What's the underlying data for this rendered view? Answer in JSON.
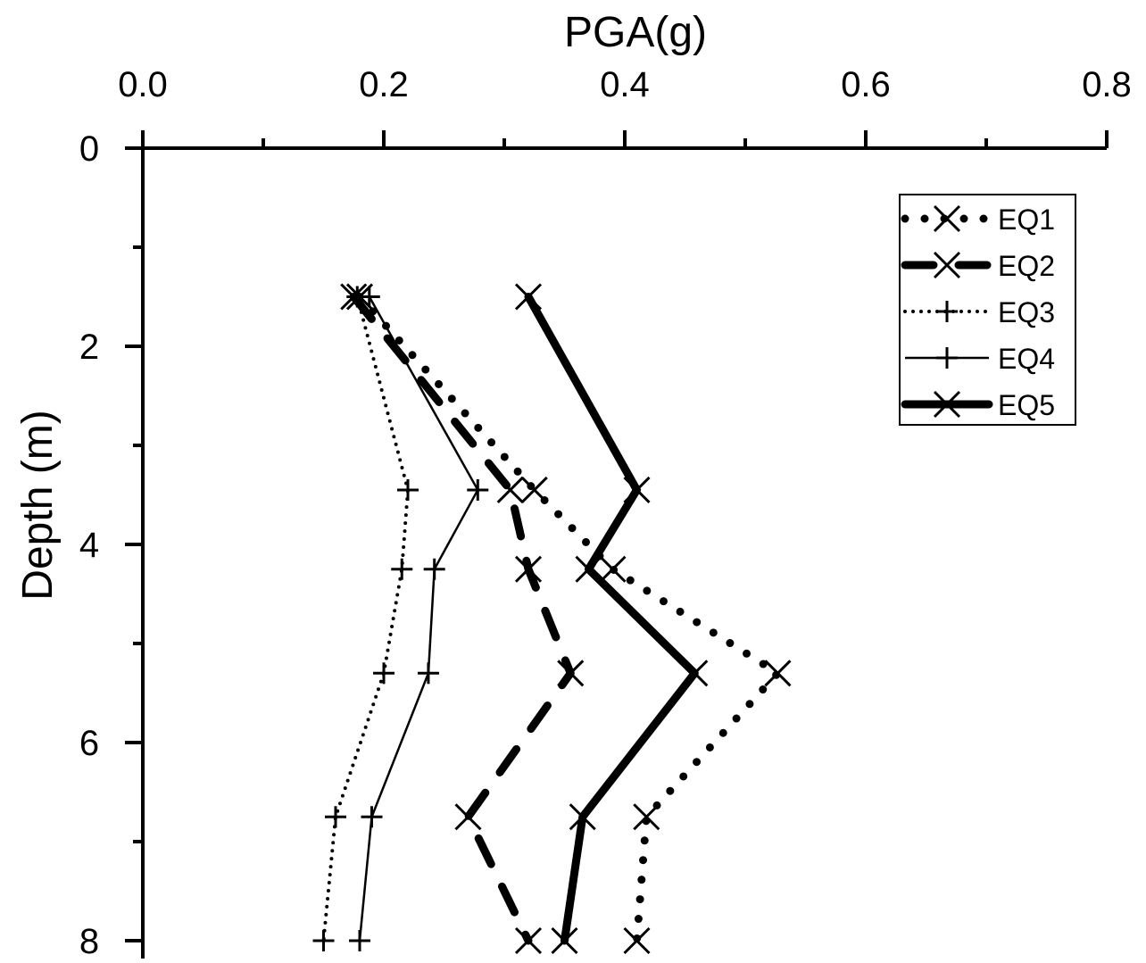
{
  "chart_data": {
    "type": "line",
    "title": "",
    "xlabel": "PGA(g)",
    "ylabel": "Depth (m)",
    "x_axis_position": "top",
    "y_axis_inverted": true,
    "xlim": [
      0.0,
      0.8
    ],
    "ylim": [
      0,
      8.2
    ],
    "x_ticks": [
      "0.0",
      "0.2",
      "0.4",
      "0.6",
      "0.8"
    ],
    "y_ticks": [
      "0",
      "2",
      "4",
      "6",
      "8"
    ],
    "grid": false,
    "legend_position": "top-right",
    "series": [
      {
        "name": "EQ1",
        "line_style": "dotted-thick",
        "marker": "x",
        "points": [
          {
            "depth": 1.5,
            "pga": 0.18
          },
          {
            "depth": 3.45,
            "pga": 0.325
          },
          {
            "depth": 4.25,
            "pga": 0.39
          },
          {
            "depth": 5.3,
            "pga": 0.527
          },
          {
            "depth": 6.75,
            "pga": 0.418
          },
          {
            "depth": 8.0,
            "pga": 0.41
          }
        ]
      },
      {
        "name": "EQ2",
        "line_style": "dashed-thick",
        "marker": "x",
        "points": [
          {
            "depth": 1.5,
            "pga": 0.175
          },
          {
            "depth": 3.45,
            "pga": 0.305
          },
          {
            "depth": 4.25,
            "pga": 0.32
          },
          {
            "depth": 5.3,
            "pga": 0.355
          },
          {
            "depth": 6.75,
            "pga": 0.27
          },
          {
            "depth": 8.0,
            "pga": 0.32
          }
        ]
      },
      {
        "name": "EQ3",
        "line_style": "dotted-thin",
        "marker": "plus",
        "points": [
          {
            "depth": 1.5,
            "pga": 0.178
          },
          {
            "depth": 3.45,
            "pga": 0.22
          },
          {
            "depth": 4.25,
            "pga": 0.215
          },
          {
            "depth": 5.3,
            "pga": 0.2
          },
          {
            "depth": 6.75,
            "pga": 0.16
          },
          {
            "depth": 8.0,
            "pga": 0.15
          }
        ]
      },
      {
        "name": "EQ4",
        "line_style": "solid-thin",
        "marker": "plus",
        "points": [
          {
            "depth": 1.5,
            "pga": 0.188
          },
          {
            "depth": 3.45,
            "pga": 0.278
          },
          {
            "depth": 4.25,
            "pga": 0.242
          },
          {
            "depth": 5.3,
            "pga": 0.237
          },
          {
            "depth": 6.75,
            "pga": 0.19
          },
          {
            "depth": 8.0,
            "pga": 0.18
          }
        ]
      },
      {
        "name": "EQ5",
        "line_style": "solid-thick",
        "marker": "x",
        "points": [
          {
            "depth": 1.5,
            "pga": 0.32
          },
          {
            "depth": 3.45,
            "pga": 0.41
          },
          {
            "depth": 4.25,
            "pga": 0.37
          },
          {
            "depth": 5.3,
            "pga": 0.458
          },
          {
            "depth": 6.75,
            "pga": 0.365
          },
          {
            "depth": 8.0,
            "pga": 0.35
          }
        ]
      }
    ]
  }
}
